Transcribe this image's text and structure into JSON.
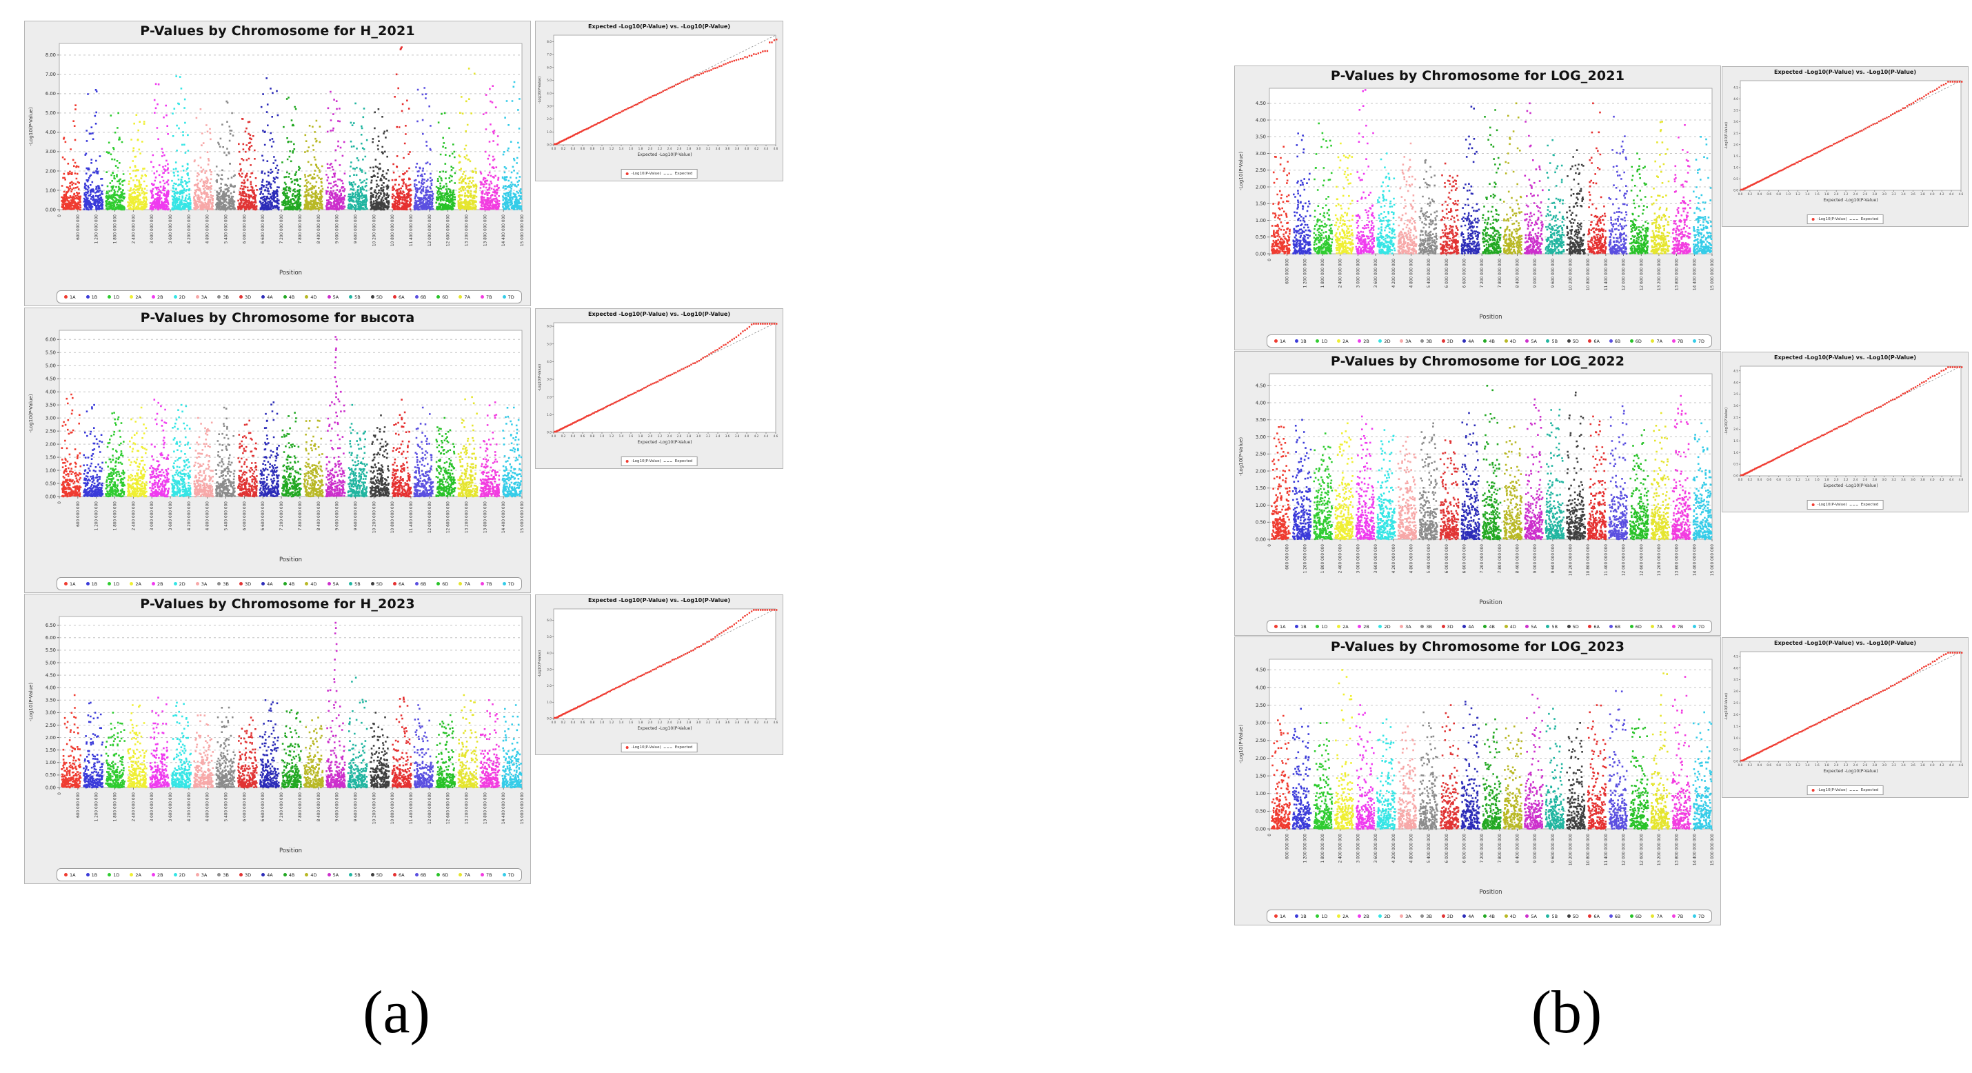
{
  "figure": {
    "caption_a": "(a)",
    "caption_b": "(b)"
  },
  "legend_entries": [
    {
      "label": "1A",
      "color": "#ef3b30"
    },
    {
      "label": "1B",
      "color": "#3a3ad9"
    },
    {
      "label": "1D",
      "color": "#2fcc30"
    },
    {
      "label": "2A",
      "color": "#efef33"
    },
    {
      "label": "2B",
      "color": "#ef3bef"
    },
    {
      "label": "2D",
      "color": "#35e5e5"
    },
    {
      "label": "3A",
      "color": "#f7a8a8"
    },
    {
      "label": "3B",
      "color": "#8c8c8c"
    },
    {
      "label": "3D",
      "color": "#e03434"
    },
    {
      "label": "4A",
      "color": "#2c2cb8"
    },
    {
      "label": "4B",
      "color": "#22a822"
    },
    {
      "label": "4D",
      "color": "#b8b825"
    },
    {
      "label": "5A",
      "color": "#cc2fcc"
    },
    {
      "label": "5B",
      "color": "#21b5a0"
    },
    {
      "label": "5D",
      "color": "#3f3f3f"
    },
    {
      "label": "6A",
      "color": "#e53030"
    },
    {
      "label": "6B",
      "color": "#5a4fe0"
    },
    {
      "label": "6D",
      "color": "#28c228"
    },
    {
      "label": "7A",
      "color": "#e5e52e"
    },
    {
      "label": "7B",
      "color": "#f23ce0"
    },
    {
      "label": "7D",
      "color": "#35cce8"
    }
  ],
  "axis": {
    "ylabel": "-Log10(P-Value)",
    "xlabel": "Position",
    "x_tick_labels": [
      "0",
      "600 000 000",
      "1 200 000 000",
      "1 800 000 000",
      "2 400 000 000",
      "3 000 000 000",
      "3 600 000 000",
      "4 200 000 000",
      "4 800 000 000",
      "5 400 000 000",
      "6 000 000 000",
      "6 600 000 000",
      "7 200 000 000",
      "7 800 000 000",
      "8 400 000 000",
      "9 000 000 000",
      "9 600 000 000",
      "10 200 000 000",
      "10 800 000 000",
      "11 400 000 000",
      "12 000 000 000",
      "12 600 000 000",
      "13 200 000 000",
      "13 800 000 000",
      "14 400 000 000",
      "15 000 000 000"
    ]
  },
  "qq": {
    "title": "Expected -Log10(P-Value) vs. -Log10(P-Value)",
    "xlabel": "Expected -Log10(P-Value)",
    "ylabel": "-Log10(P-Value)",
    "legend_point_label": "-Log10(P-Value)",
    "legend_line_label": "Expected",
    "point_color": "#f03c32",
    "x_tick_labels": [
      "0.0",
      "0.2",
      "0.4",
      "0.6",
      "0.8",
      "1.0",
      "1.2",
      "1.4",
      "1.6",
      "1.8",
      "2.0",
      "2.2",
      "2.4",
      "2.6",
      "2.8",
      "3.0",
      "3.2",
      "3.4",
      "3.6",
      "3.8",
      "4.0",
      "4.2",
      "4.4",
      "4.6"
    ]
  },
  "chart_data": [
    {
      "id": "m_a1",
      "type": "scatter",
      "subtype": "manhattan",
      "title": "P-Values by Chromosome for H_2021",
      "xlabel": "Position",
      "ylabel": "-Log10(P-Value)",
      "ymax": 8.6,
      "yticks": [
        "8.00",
        "7.00",
        "6.00",
        "5.00",
        "4.00",
        "3.00",
        "2.00",
        "1.00",
        "0.00"
      ],
      "categories": [
        "1A",
        "1B",
        "1D",
        "2A",
        "2B",
        "2D",
        "3A",
        "3B",
        "3D",
        "4A",
        "4B",
        "4D",
        "5A",
        "5B",
        "5D",
        "6A",
        "6B",
        "6D",
        "7A",
        "7B",
        "7D"
      ],
      "peaks": [
        5.4,
        6.2,
        5.0,
        4.9,
        6.5,
        6.9,
        5.2,
        5.6,
        4.7,
        6.8,
        5.8,
        4.6,
        6.1,
        5.5,
        5.2,
        7.0,
        6.3,
        5.0,
        7.3,
        6.4,
        6.6
      ],
      "lambda": 0.62,
      "dense": 190,
      "spike": {
        "chrom": 15,
        "from": 8.25,
        "to": 8.4,
        "count": 2
      },
      "seed": 101
    },
    {
      "id": "q_a1",
      "type": "scatter",
      "subtype": "qq",
      "ymax": 8.5,
      "xmax_expected": 4.6,
      "tail": "below",
      "yticks": [
        "8.0",
        "7.0",
        "6.0",
        "5.0",
        "4.0",
        "3.0",
        "2.0",
        "1.0",
        "0.0"
      ],
      "seed": 201
    },
    {
      "id": "m_a2",
      "type": "scatter",
      "subtype": "manhattan",
      "title": "P-Values by Chromosome for высота",
      "xlabel": "Position",
      "ylabel": "-Log10(P-Value)",
      "ymax": 6.35,
      "yticks": [
        "6.00",
        "5.50",
        "5.00",
        "4.50",
        "4.00",
        "3.50",
        "3.00",
        "2.50",
        "2.00",
        "1.50",
        "1.00",
        "0.50",
        "0.00"
      ],
      "categories": [
        "1A",
        "1B",
        "1D",
        "2A",
        "2B",
        "2D",
        "3A",
        "3B",
        "3D",
        "4A",
        "4B",
        "4D",
        "5A",
        "5B",
        "5D",
        "6A",
        "6B",
        "6D",
        "7A",
        "7B",
        "7D"
      ],
      "peaks": [
        3.9,
        3.5,
        3.2,
        3.4,
        3.7,
        3.5,
        3.0,
        3.4,
        2.9,
        3.6,
        3.2,
        2.9,
        4.0,
        3.5,
        3.1,
        3.7,
        3.4,
        3.0,
        3.8,
        3.6,
        3.4
      ],
      "lambda": 0.5,
      "dense": 170,
      "spike": {
        "chrom": 12,
        "from": 3.2,
        "to": 6.1,
        "count": 13
      },
      "seed": 102
    },
    {
      "id": "q_a2",
      "type": "scatter",
      "subtype": "qq",
      "ymax": 6.2,
      "xmax_expected": 4.6,
      "tail": "above",
      "yticks": [
        "6.0",
        "5.0",
        "4.0",
        "3.0",
        "2.0",
        "1.0",
        "0.0"
      ],
      "seed": 202
    },
    {
      "id": "m_a3",
      "type": "scatter",
      "subtype": "manhattan",
      "title": "P-Values by Chromosome for H_2023",
      "xlabel": "Position",
      "ylabel": "-Log10(P-Value)",
      "ymax": 6.85,
      "yticks": [
        "6.50",
        "6.00",
        "5.50",
        "5.00",
        "4.50",
        "4.00",
        "3.50",
        "3.00",
        "2.50",
        "2.00",
        "1.50",
        "1.00",
        "0.50",
        "0.00"
      ],
      "categories": [
        "1A",
        "1B",
        "1D",
        "2A",
        "2B",
        "2D",
        "3A",
        "3B",
        "3D",
        "4A",
        "4B",
        "4D",
        "5A",
        "5B",
        "5D",
        "6A",
        "6B",
        "6D",
        "7A",
        "7B",
        "7D"
      ],
      "peaks": [
        3.7,
        3.4,
        3.0,
        3.3,
        3.6,
        3.4,
        2.9,
        3.2,
        2.8,
        3.5,
        3.1,
        2.8,
        3.9,
        4.4,
        3.0,
        3.6,
        3.3,
        2.9,
        3.7,
        3.5,
        3.3
      ],
      "lambda": 0.5,
      "dense": 170,
      "spike": {
        "chrom": 12,
        "from": 3.0,
        "to": 6.6,
        "count": 11
      },
      "seed": 103
    },
    {
      "id": "q_a3",
      "type": "scatter",
      "subtype": "qq",
      "ymax": 6.7,
      "xmax_expected": 4.6,
      "tail": "above",
      "yticks": [
        "6.0",
        "5.0",
        "4.0",
        "3.0",
        "2.0",
        "1.0",
        "0.0"
      ],
      "seed": 203
    },
    {
      "id": "m_b1",
      "type": "scatter",
      "subtype": "manhattan",
      "title": "P-Values by Chromosome for LOG_2021",
      "xlabel": "Position",
      "ylabel": "-Log10(P-Value)",
      "ymax": 4.95,
      "yticks": [
        "4.50",
        "4.00",
        "3.50",
        "3.00",
        "2.50",
        "2.00",
        "1.50",
        "1.00",
        "0.50",
        "0.00"
      ],
      "categories": [
        "1A",
        "1B",
        "1D",
        "2A",
        "2B",
        "2D",
        "3A",
        "3B",
        "3D",
        "4A",
        "4B",
        "4D",
        "5A",
        "5B",
        "5D",
        "6A",
        "6B",
        "6D",
        "7A",
        "7B",
        "7D"
      ],
      "peaks": [
        3.2,
        3.6,
        3.9,
        3.3,
        4.9,
        3.0,
        3.3,
        2.8,
        2.7,
        4.4,
        4.3,
        4.5,
        4.5,
        3.4,
        3.1,
        4.5,
        4.1,
        3.0,
        3.95,
        3.85,
        3.5
      ],
      "lambda": 0.48,
      "dense": 160,
      "spike": null,
      "seed": 104
    },
    {
      "id": "q_b1",
      "type": "scatter",
      "subtype": "qq",
      "ymax": 4.8,
      "xmax_expected": 4.6,
      "tail": "slight",
      "yticks": [
        "4.5",
        "4.0",
        "3.5",
        "3.0",
        "2.5",
        "2.0",
        "1.5",
        "1.0",
        "0.5",
        "0.0"
      ],
      "seed": 204
    },
    {
      "id": "m_b2",
      "type": "scatter",
      "subtype": "manhattan",
      "title": "P-Values by Chromosome for LOG_2022",
      "xlabel": "Position",
      "ylabel": "-Log10(P-Value)",
      "ymax": 4.85,
      "yticks": [
        "4.50",
        "4.00",
        "3.50",
        "3.00",
        "2.50",
        "2.00",
        "1.50",
        "1.00",
        "0.50",
        "0.00"
      ],
      "categories": [
        "1A",
        "1B",
        "1D",
        "2A",
        "2B",
        "2D",
        "3A",
        "3B",
        "3D",
        "4A",
        "4B",
        "4D",
        "5A",
        "5B",
        "5D",
        "6A",
        "6B",
        "6D",
        "7A",
        "7B",
        "7D"
      ],
      "peaks": [
        3.3,
        3.5,
        3.1,
        3.4,
        3.6,
        3.2,
        3.0,
        3.4,
        2.9,
        3.7,
        4.5,
        3.3,
        4.1,
        3.8,
        4.3,
        3.6,
        3.9,
        3.2,
        3.7,
        4.2,
        3.4
      ],
      "lambda": 0.6,
      "dense": 205,
      "spike": null,
      "seed": 105
    },
    {
      "id": "q_b2",
      "type": "scatter",
      "subtype": "qq",
      "ymax": 4.7,
      "xmax_expected": 4.6,
      "tail": "slight",
      "yticks": [
        "4.5",
        "4.0",
        "3.5",
        "3.0",
        "2.5",
        "2.0",
        "1.5",
        "1.0",
        "0.5",
        "0.0"
      ],
      "seed": 205
    },
    {
      "id": "m_b3",
      "type": "scatter",
      "subtype": "manhattan",
      "title": "P-Values by Chromosome for LOG_2023",
      "xlabel": "Position",
      "ylabel": "-Log10(P-Value)",
      "ymax": 4.8,
      "yticks": [
        "4.50",
        "4.00",
        "3.50",
        "3.00",
        "2.50",
        "2.00",
        "1.50",
        "1.00",
        "0.50",
        "0.00"
      ],
      "categories": [
        "1A",
        "1B",
        "1D",
        "2A",
        "2B",
        "2D",
        "3A",
        "3B",
        "3D",
        "4A",
        "4B",
        "4D",
        "5A",
        "5B",
        "5D",
        "6A",
        "6B",
        "6D",
        "7A",
        "7B",
        "7D"
      ],
      "peaks": [
        3.2,
        3.4,
        3.0,
        4.5,
        3.5,
        3.1,
        2.9,
        3.3,
        3.5,
        3.6,
        3.1,
        2.9,
        3.8,
        3.4,
        3.0,
        3.5,
        3.9,
        3.1,
        4.4,
        4.3,
        3.3
      ],
      "lambda": 0.52,
      "dense": 175,
      "spike": null,
      "seed": 106
    },
    {
      "id": "q_b3",
      "type": "scatter",
      "subtype": "qq",
      "ymax": 4.7,
      "xmax_expected": 4.6,
      "tail": "slight",
      "yticks": [
        "4.5",
        "4.0",
        "3.5",
        "3.0",
        "2.5",
        "2.0",
        "1.5",
        "1.0",
        "0.5",
        "0.0"
      ],
      "seed": 206
    }
  ]
}
